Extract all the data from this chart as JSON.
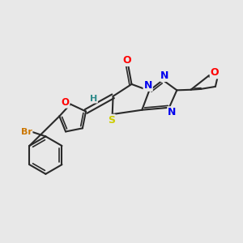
{
  "background_color": "#e8e8e8",
  "bond_color": "#2a2a2a",
  "atom_colors": {
    "O": "#ff0000",
    "N": "#0000ee",
    "S": "#cccc00",
    "Br": "#cc7700",
    "H": "#2e8b8b",
    "C": "#2a2a2a"
  },
  "fig_width": 3.0,
  "fig_height": 3.0,
  "dpi": 100
}
